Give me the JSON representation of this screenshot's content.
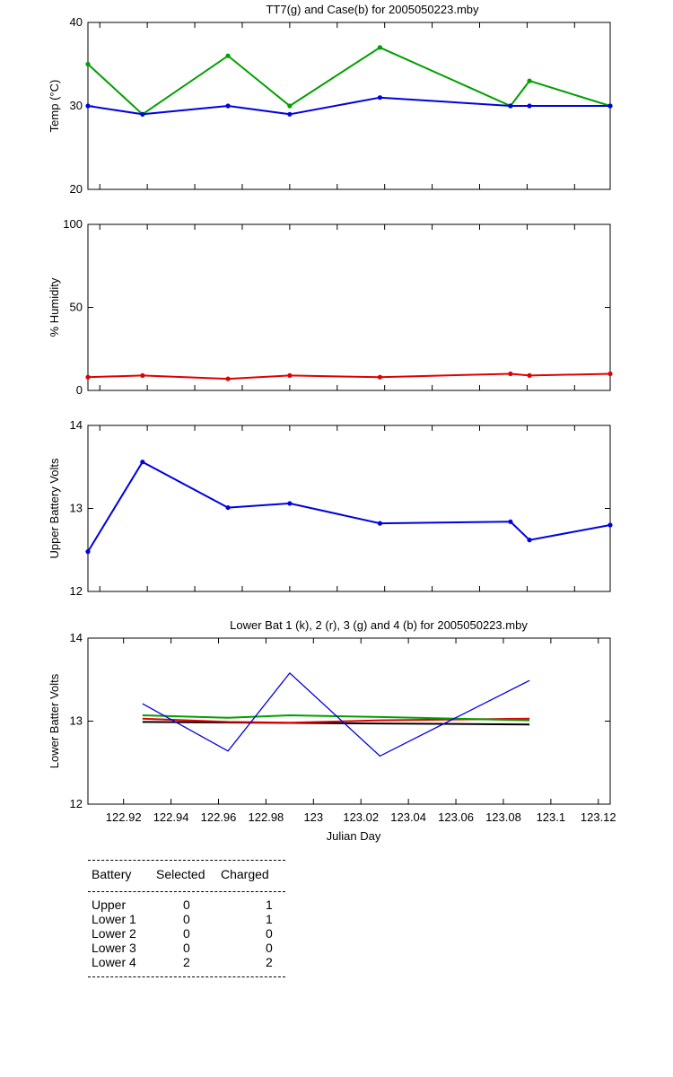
{
  "chart_data": [
    {
      "type": "line",
      "title": "TT7(g) and Case(b) for 2005050223.mby",
      "xlabel": "",
      "ylabel": "Temp  (°C)",
      "xlim": [
        122.905,
        123.125
      ],
      "ylim": [
        20,
        40
      ],
      "yticks": [
        20,
        30,
        40
      ],
      "x": [
        122.905,
        122.928,
        122.964,
        122.99,
        123.028,
        123.083,
        123.091,
        123.125
      ],
      "series": [
        {
          "color": "#00a000",
          "values": [
            35,
            29,
            36,
            30,
            37,
            30,
            33,
            30
          ]
        },
        {
          "color": "#0000e0",
          "values": [
            30,
            29,
            30,
            29,
            31,
            30,
            30,
            30
          ]
        }
      ],
      "grid": false
    },
    {
      "type": "line",
      "title": "",
      "xlabel": "",
      "ylabel": "% Humidity",
      "xlim": [
        122.905,
        123.125
      ],
      "ylim": [
        0,
        100
      ],
      "yticks": [
        0,
        50,
        100
      ],
      "x": [
        122.905,
        122.928,
        122.964,
        122.99,
        123.028,
        123.083,
        123.091,
        123.125
      ],
      "series": [
        {
          "color": "#e00000",
          "values": [
            8,
            9,
            7,
            9,
            8,
            10,
            9,
            10
          ]
        }
      ],
      "grid": false
    },
    {
      "type": "line",
      "title": "",
      "xlabel": "",
      "ylabel": "Upper Battery Volts",
      "xlim": [
        122.905,
        123.125
      ],
      "ylim": [
        12,
        14
      ],
      "yticks": [
        12,
        13,
        14
      ],
      "x": [
        122.905,
        122.928,
        122.964,
        122.99,
        123.028,
        123.083,
        123.091,
        123.125
      ],
      "series": [
        {
          "color": "#0000e0",
          "values": [
            12.48,
            13.56,
            13.01,
            13.06,
            12.82,
            12.84,
            12.62,
            12.8
          ]
        }
      ],
      "grid": false
    },
    {
      "type": "line",
      "title": "Lower Bat 1 (k), 2 (r), 3 (g) and 4 (b) for 2005050223.mby",
      "xlabel": "Julian Day",
      "ylabel": "Lower Batter Volts",
      "xlim": [
        122.905,
        123.125
      ],
      "ylim": [
        12,
        14
      ],
      "yticks": [
        12,
        13,
        14
      ],
      "xticks": [
        122.92,
        122.94,
        122.96,
        122.98,
        123,
        123.02,
        123.04,
        123.06,
        123.08,
        123.1,
        123.12
      ],
      "xtick_labels": [
        "122.92",
        "122.94",
        "122.96",
        "122.98",
        "123",
        "123.02",
        "123.04",
        "123.06",
        "123.08",
        "123.1",
        "123.12"
      ],
      "series": [
        {
          "color": "#000000",
          "x": [
            122.928,
            123.091
          ],
          "values": [
            12.99,
            12.96
          ]
        },
        {
          "color": "#e00000",
          "x": [
            122.928,
            122.964,
            122.99,
            123.028,
            123.091
          ],
          "values": [
            13.03,
            12.99,
            12.98,
            13.01,
            13.03
          ]
        },
        {
          "color": "#00a000",
          "x": [
            122.928,
            122.964,
            122.99,
            123.028,
            123.091
          ],
          "values": [
            13.07,
            13.04,
            13.07,
            13.05,
            13.01
          ]
        },
        {
          "color": "#0000e0",
          "x": [
            122.928,
            122.964,
            122.99,
            123.028,
            123.091
          ],
          "values": [
            13.21,
            12.64,
            13.58,
            12.58,
            13.49
          ]
        }
      ],
      "grid": false
    }
  ],
  "table": {
    "headers": [
      "Battery",
      "Selected",
      "Charged"
    ],
    "rows": [
      [
        "Upper",
        "0",
        "1"
      ],
      [
        "Lower 1",
        "0",
        "1"
      ],
      [
        "Lower 2",
        "0",
        "0"
      ],
      [
        "Lower 3",
        "0",
        "0"
      ],
      [
        "Lower 4",
        "2",
        "2"
      ]
    ]
  }
}
